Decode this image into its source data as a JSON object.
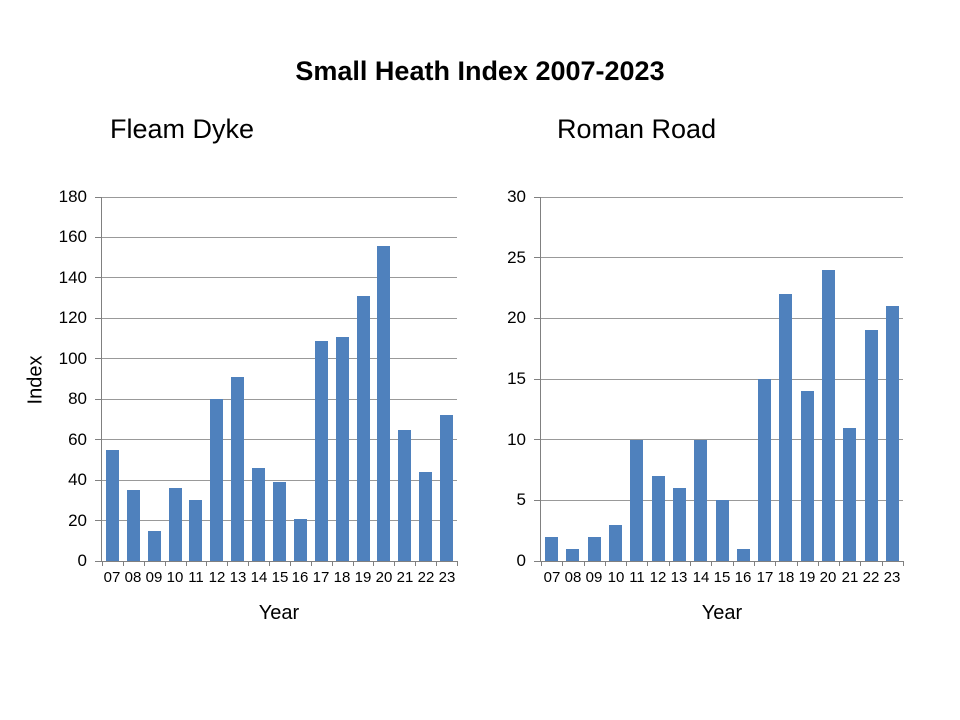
{
  "title": "Small Heath Index 2007-2023",
  "colors": {
    "bar": "#4F81BD",
    "gridline": "#999999",
    "axis": "#808080",
    "text": "#000000",
    "background": "#FFFFFF"
  },
  "chart_data": [
    {
      "type": "bar",
      "title": "Fleam Dyke",
      "xlabel": "Year",
      "ylabel": "Index",
      "categories": [
        "07",
        "08",
        "09",
        "10",
        "11",
        "12",
        "13",
        "14",
        "15",
        "16",
        "17",
        "18",
        "19",
        "20",
        "21",
        "22",
        "23"
      ],
      "values": [
        55,
        35,
        15,
        36,
        30,
        80,
        91,
        46,
        39,
        21,
        109,
        111,
        131,
        156,
        65,
        44,
        72
      ],
      "ylim": [
        0,
        180
      ],
      "ytick_step": 20,
      "grid": true,
      "legend": false
    },
    {
      "type": "bar",
      "title": "Roman Road",
      "xlabel": "Year",
      "ylabel": "",
      "categories": [
        "07",
        "08",
        "09",
        "10",
        "11",
        "12",
        "13",
        "14",
        "15",
        "16",
        "17",
        "18",
        "19",
        "20",
        "21",
        "22",
        "23"
      ],
      "values": [
        2,
        1,
        2,
        3,
        10,
        7,
        6,
        10,
        5,
        1,
        15,
        22,
        14,
        24,
        11,
        19,
        21
      ],
      "ylim": [
        0,
        30
      ],
      "ytick_step": 5,
      "grid": true,
      "legend": false
    }
  ]
}
